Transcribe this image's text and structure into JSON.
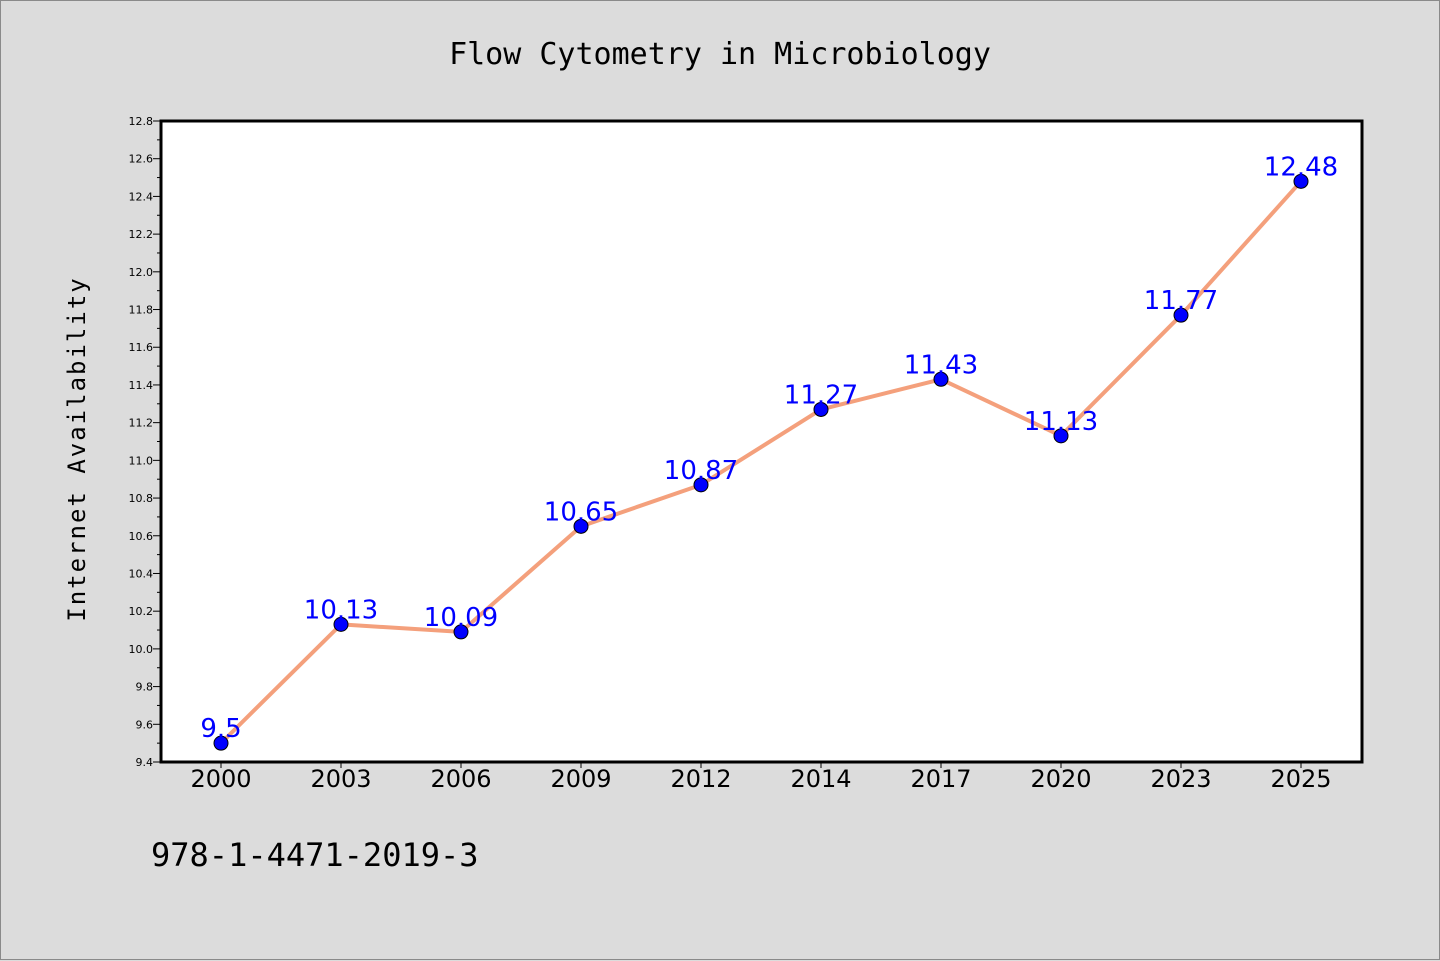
{
  "chart_data": {
    "type": "line",
    "title": "Flow Cytometry in Microbiology",
    "ylabel": "Internet Availability",
    "xlabel": "",
    "categories": [
      "2000",
      "2003",
      "2006",
      "2009",
      "2012",
      "2014",
      "2017",
      "2020",
      "2023",
      "2025"
    ],
    "series": [
      {
        "values": [
          9.5,
          10.13,
          10.09,
          10.65,
          10.87,
          11.27,
          11.43,
          11.13,
          11.77,
          12.48
        ]
      }
    ],
    "data_labels": [
      "9.5",
      "10.13",
      "10.09",
      "10.65",
      "10.87",
      "11.27",
      "11.43",
      "11.13",
      "11.77",
      "12.48"
    ],
    "ylim": [
      9.4,
      12.8
    ],
    "yticks": [
      "9.4",
      "9.6",
      "9.8",
      "10.0",
      "10.2",
      "10.4",
      "10.6",
      "10.8",
      "11.0",
      "11.2",
      "11.4",
      "11.6",
      "11.8",
      "12.0",
      "12.2",
      "12.4",
      "12.6",
      "12.8"
    ],
    "grid": false,
    "colors": {
      "line": "#f4a07c",
      "marker": "#0000ff",
      "label": "#0000ff",
      "background": "#dcdcdc"
    }
  },
  "footer": {
    "isbn": "978-1-4471-2019-3"
  }
}
